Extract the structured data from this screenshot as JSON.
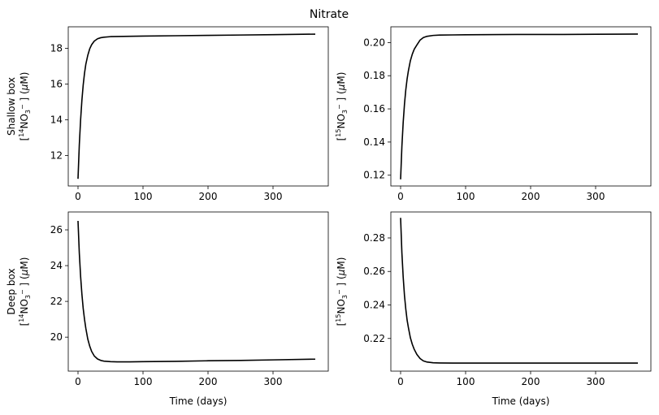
{
  "chart_data": {
    "type": "line",
    "title": "Nitrate",
    "panels": [
      {
        "ylabel_lines": [
          "Shallow box",
          "[14NO3−] (μM)"
        ],
        "ylabel_box": "Shallow box",
        "ylabel_isotope": "14",
        "xlabel": "",
        "xlim": [
          -15,
          385
        ],
        "ylim": [
          10.3,
          19.2
        ],
        "xticks": [
          0,
          100,
          200,
          300
        ],
        "yticks": [
          12,
          14,
          16,
          18
        ],
        "series": [
          {
            "color": "#000000",
            "x": [
              0,
              2,
              4,
              6,
              8,
              10,
              12,
              15,
              18,
              21,
              25,
              30,
              35,
              40,
              50,
              60,
              80,
              100,
              150,
              200,
              250,
              300,
              365
            ],
            "y": [
              10.7,
              12.6,
              14.0,
              15.1,
              15.95,
              16.6,
              17.1,
              17.6,
              17.97,
              18.2,
              18.4,
              18.53,
              18.59,
              18.62,
              18.65,
              18.66,
              18.67,
              18.68,
              18.7,
              18.72,
              18.74,
              18.76,
              18.79
            ]
          }
        ]
      },
      {
        "ylabel_lines": [
          "[15NO3−] (μM)"
        ],
        "ylabel_box": "",
        "ylabel_isotope": "15",
        "xlabel": "",
        "xlim": [
          -15,
          385
        ],
        "ylim": [
          0.1135,
          0.2095
        ],
        "xticks": [
          0,
          100,
          200,
          300
        ],
        "yticks": [
          0.12,
          0.14,
          0.16,
          0.18,
          0.2
        ],
        "ytick_decimals": 2,
        "series": [
          {
            "color": "#000000",
            "x": [
              0,
              2,
              4,
              6,
              8,
              10,
              12,
              15,
              18,
              21,
              25,
              30,
              35,
              40,
              50,
              60,
              80,
              100,
              150,
              200,
              250,
              300,
              365
            ],
            "y": [
              0.1175,
              0.1375,
              0.152,
              0.163,
              0.1715,
              0.178,
              0.183,
              0.189,
              0.193,
              0.196,
              0.1985,
              0.2015,
              0.203,
              0.2037,
              0.2043,
              0.2045,
              0.2046,
              0.2047,
              0.2048,
              0.2049,
              0.2049,
              0.205,
              0.2051
            ]
          }
        ]
      },
      {
        "ylabel_lines": [
          "Deep box",
          "[14NO3−] (μM)"
        ],
        "ylabel_box": "Deep box",
        "ylabel_isotope": "14",
        "xlabel": "Time (days)",
        "xlim": [
          -15,
          385
        ],
        "ylim": [
          18.1,
          27.0
        ],
        "xticks": [
          0,
          100,
          200,
          300
        ],
        "yticks": [
          20,
          22,
          24,
          26
        ],
        "series": [
          {
            "color": "#000000",
            "x": [
              0,
              2,
              4,
              6,
              8,
              10,
              12,
              15,
              18,
              21,
              25,
              30,
              35,
              40,
              50,
              60,
              70,
              80,
              100,
              150,
              200,
              250,
              300,
              365
            ],
            "y": [
              26.5,
              24.7,
              23.4,
              22.4,
              21.6,
              21.0,
              20.5,
              19.9,
              19.5,
              19.2,
              18.95,
              18.78,
              18.7,
              18.66,
              18.63,
              18.62,
              18.62,
              18.62,
              18.63,
              18.65,
              18.68,
              18.7,
              18.73,
              18.77
            ]
          }
        ]
      },
      {
        "ylabel_lines": [
          "[15NO3−] (μM)"
        ],
        "ylabel_box": "",
        "ylabel_isotope": "15",
        "xlabel": "Time (days)",
        "xlim": [
          -15,
          385
        ],
        "ylim": [
          0.2005,
          0.2955
        ],
        "xticks": [
          0,
          100,
          200,
          300
        ],
        "yticks": [
          0.22,
          0.24,
          0.26,
          0.28
        ],
        "ytick_decimals": 2,
        "series": [
          {
            "color": "#000000",
            "x": [
              0,
              2,
              4,
              6,
              8,
              10,
              12,
              15,
              18,
              21,
              25,
              30,
              35,
              40,
              50,
              60,
              80,
              100,
              150,
              200,
              250,
              300,
              365
            ],
            "y": [
              0.292,
              0.271,
              0.2565,
              0.2455,
              0.2375,
              0.231,
              0.2265,
              0.2205,
              0.2165,
              0.2135,
              0.2105,
              0.208,
              0.2066,
              0.206,
              0.2055,
              0.2054,
              0.2053,
              0.2053,
              0.2053,
              0.2053,
              0.2053,
              0.2053,
              0.2053
            ]
          }
        ]
      }
    ]
  }
}
